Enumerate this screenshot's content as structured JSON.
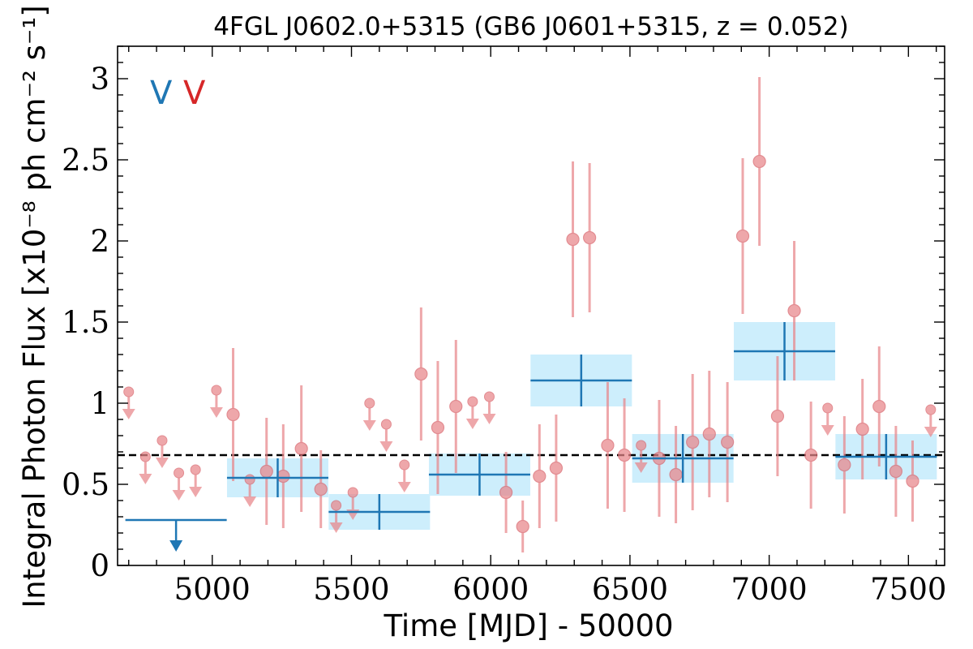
{
  "colors": {
    "binned": "#1f77b4",
    "binned_band": "#cdeefc",
    "monthly": "#e8868a",
    "monthly_edge": "#d86068",
    "average_line": "#000000"
  },
  "chart_data": {
    "type": "scatter",
    "title": "4FGL J0602.0+5315 (GB6 J0601+5315, z = 0.052)",
    "xlabel": "Time [MJD] - 50000",
    "ylabel": "Integral Photon Flux [x10⁻⁸ ph cm⁻² s⁻¹]",
    "xlim": [
      4660,
      7630
    ],
    "ylim": [
      0,
      3.2
    ],
    "xticks": [
      5000,
      5500,
      6000,
      6500,
      7000,
      7500
    ],
    "xtick_labels": [
      "5000",
      "5500",
      "6000",
      "6500",
      "7000",
      "7500"
    ],
    "yticks": [
      0,
      0.5,
      1,
      1.5,
      2,
      2.5,
      3
    ],
    "ytick_labels": [
      "0",
      "0.5",
      "1",
      "1.5",
      "2",
      "2.5",
      "3"
    ],
    "legend": {
      "position": "top-left",
      "markers": [
        "V",
        "V"
      ]
    },
    "average_flux": 0.68,
    "series": [
      {
        "style": "binned",
        "points": [
          {
            "x": 4870,
            "xerr": 182,
            "y": 0.28,
            "upper_limit": true
          },
          {
            "x": 5235,
            "xerr": 182,
            "y": 0.54,
            "yerr": 0.12
          },
          {
            "x": 5600,
            "xerr": 182,
            "y": 0.33,
            "yerr": 0.11
          },
          {
            "x": 5960,
            "xerr": 182,
            "y": 0.56,
            "yerr": 0.13
          },
          {
            "x": 6325,
            "xerr": 182,
            "y": 1.14,
            "yerr": 0.16
          },
          {
            "x": 6690,
            "xerr": 182,
            "y": 0.66,
            "yerr": 0.15
          },
          {
            "x": 7055,
            "xerr": 182,
            "y": 1.32,
            "yerr": 0.18
          },
          {
            "x": 7420,
            "xerr": 182,
            "y": 0.67,
            "yerr": 0.14
          }
        ]
      },
      {
        "style": "monthly",
        "points": [
          {
            "x": 4700,
            "y": 1.07,
            "upper_limit": true
          },
          {
            "x": 4760,
            "y": 0.67,
            "upper_limit": true
          },
          {
            "x": 4820,
            "y": 0.77,
            "upper_limit": true
          },
          {
            "x": 4880,
            "y": 0.57,
            "upper_limit": true
          },
          {
            "x": 4940,
            "y": 0.59,
            "upper_limit": true
          },
          {
            "x": 5015,
            "y": 1.08,
            "upper_limit": true
          },
          {
            "x": 5075,
            "y": 0.93,
            "yerr": 0.41
          },
          {
            "x": 5135,
            "y": 0.53,
            "upper_limit": true
          },
          {
            "x": 5195,
            "y": 0.58,
            "yerr": 0.33
          },
          {
            "x": 5255,
            "y": 0.55,
            "yerr": 0.32
          },
          {
            "x": 5320,
            "y": 0.72,
            "yerr": 0.39
          },
          {
            "x": 5390,
            "y": 0.47,
            "yerr": 0.24
          },
          {
            "x": 5445,
            "y": 0.37,
            "upper_limit": true
          },
          {
            "x": 5505,
            "y": 0.45,
            "upper_limit": true
          },
          {
            "x": 5565,
            "y": 1.0,
            "upper_limit": true
          },
          {
            "x": 5625,
            "y": 0.87,
            "upper_limit": true
          },
          {
            "x": 5690,
            "y": 0.62,
            "upper_limit": true
          },
          {
            "x": 5750,
            "y": 1.18,
            "yerr": 0.41
          },
          {
            "x": 5810,
            "y": 0.85,
            "yerr": 0.41
          },
          {
            "x": 5875,
            "y": 0.98,
            "yerr": 0.41
          },
          {
            "x": 5935,
            "y": 1.01,
            "upper_limit": true
          },
          {
            "x": 5995,
            "y": 1.04,
            "upper_limit": true
          },
          {
            "x": 6055,
            "y": 0.45,
            "yerr": 0.25
          },
          {
            "x": 6115,
            "y": 0.24,
            "yerr": 0.16
          },
          {
            "x": 6175,
            "y": 0.55,
            "yerr": 0.32
          },
          {
            "x": 6235,
            "y": 0.6,
            "yerr": 0.33
          },
          {
            "x": 6295,
            "y": 2.01,
            "yerr": 0.48
          },
          {
            "x": 6355,
            "y": 2.02,
            "yerr": 0.46
          },
          {
            "x": 6420,
            "y": 0.74,
            "yerr": 0.39
          },
          {
            "x": 6480,
            "y": 0.68,
            "yerr": 0.35
          },
          {
            "x": 6540,
            "y": 0.74,
            "upper_limit": true
          },
          {
            "x": 6605,
            "y": 0.66,
            "yerr": 0.36
          },
          {
            "x": 6665,
            "y": 0.56,
            "yerr": 0.3
          },
          {
            "x": 6725,
            "y": 0.76,
            "yerr": 0.42
          },
          {
            "x": 6785,
            "y": 0.81,
            "yerr": 0.39
          },
          {
            "x": 6850,
            "y": 0.76,
            "yerr": 0.37
          },
          {
            "x": 6905,
            "y": 2.03,
            "yerr": 0.48
          },
          {
            "x": 6965,
            "y": 2.49,
            "yerr": 0.52
          },
          {
            "x": 7030,
            "y": 0.92,
            "yerr": 0.37
          },
          {
            "x": 7090,
            "y": 1.57,
            "yerr": 0.43
          },
          {
            "x": 7150,
            "y": 0.68,
            "yerr": 0.33
          },
          {
            "x": 7210,
            "y": 0.97,
            "upper_limit": true
          },
          {
            "x": 7270,
            "y": 0.62,
            "yerr": 0.3
          },
          {
            "x": 7335,
            "y": 0.84,
            "yerr": 0.31
          },
          {
            "x": 7395,
            "y": 0.98,
            "yerr": 0.37
          },
          {
            "x": 7455,
            "y": 0.58,
            "yerr": 0.28
          },
          {
            "x": 7515,
            "y": 0.52,
            "yerr": 0.25
          },
          {
            "x": 7580,
            "y": 0.96,
            "upper_limit": true
          }
        ]
      }
    ]
  }
}
